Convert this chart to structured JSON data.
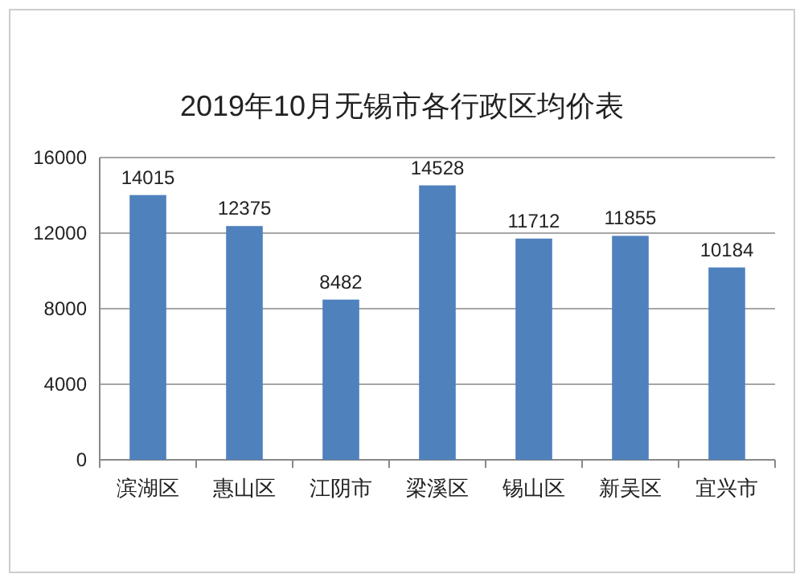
{
  "chart_data": {
    "type": "bar",
    "title": "2019年10月无锡市各行政区均价表",
    "categories": [
      "滨湖区",
      "惠山区",
      "江阴市",
      "梁溪区",
      "锡山区",
      "新吴区",
      "宜兴市"
    ],
    "values": [
      14015,
      12375,
      8482,
      14528,
      11712,
      11855,
      10184
    ],
    "color": "#4f81bd",
    "ylim": [
      0,
      16000
    ],
    "yticks": [
      0,
      4000,
      8000,
      12000,
      16000
    ],
    "grid": "y",
    "data_labels": true
  }
}
